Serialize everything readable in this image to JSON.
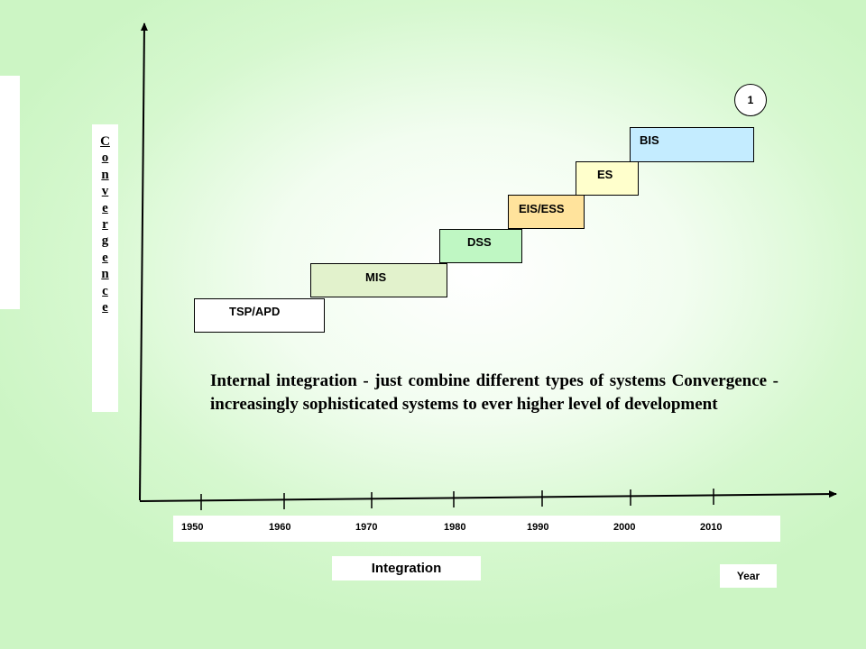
{
  "y_axis_letters": [
    "C",
    "o",
    "n",
    "v",
    "e",
    "r",
    "g",
    "e",
    "n",
    "c",
    "e"
  ],
  "steps": [
    {
      "label": "TSP/APD",
      "color": "#ffffff"
    },
    {
      "label": "MIS",
      "color": "#e2f2cc"
    },
    {
      "label": "DSS",
      "color": "#bff7c3"
    },
    {
      "label": "EIS/ESS",
      "color": "#ffe39c"
    },
    {
      "label": "ES",
      "color": "#ffffcc"
    },
    {
      "label": "BIS",
      "color": "#c4ecff"
    }
  ],
  "badge": "1",
  "description": "Internal integration - just combine different types of systems Convergence - increasingly sophisticated systems to ever higher level of development",
  "years": [
    "1950",
    "1960",
    "1970",
    "1980",
    "1990",
    "2000",
    "2010"
  ],
  "x_axis_title": "Integration",
  "year_title": "Year"
}
